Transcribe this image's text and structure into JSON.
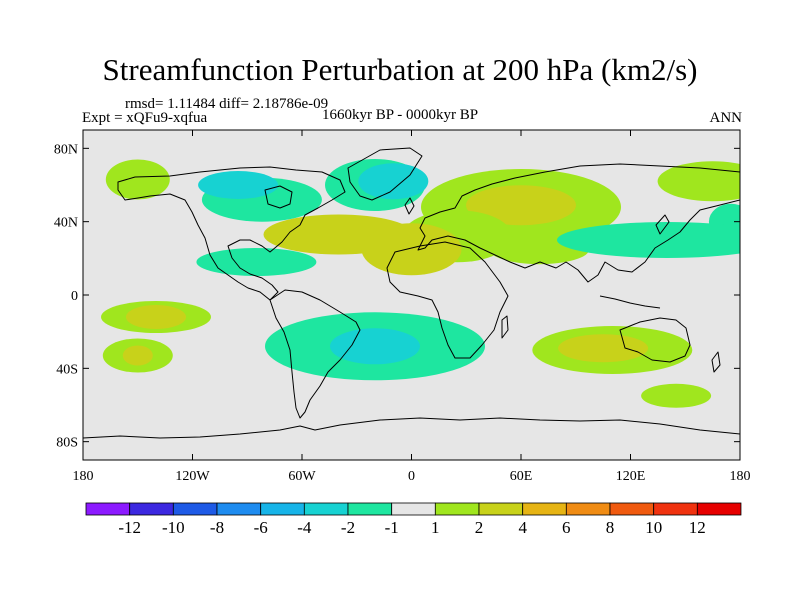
{
  "chart_data": {
    "type": "heatmap",
    "title": "Streamfunction Perturbation at 200 hPa (km2/s)",
    "stats": "rmsd= 1.11484 diff= 2.18786e-09",
    "experiment": "Expt = xQFu9-xqfua",
    "period": "1660kyr BP - 0000kyr BP",
    "season": "ANN",
    "projection": "cylindrical equidistant",
    "xlim": [
      -180,
      180
    ],
    "ylim": [
      -90,
      90
    ],
    "x_ticks": [
      {
        "value": -180,
        "label": "180"
      },
      {
        "value": -120,
        "label": "120W"
      },
      {
        "value": -60,
        "label": "60W"
      },
      {
        "value": 0,
        "label": "0"
      },
      {
        "value": 60,
        "label": "60E"
      },
      {
        "value": 120,
        "label": "120E"
      },
      {
        "value": 180,
        "label": "180"
      }
    ],
    "y_ticks": [
      {
        "value": 80,
        "label": "80N"
      },
      {
        "value": 40,
        "label": "40N"
      },
      {
        "value": 0,
        "label": "0"
      },
      {
        "value": -40,
        "label": "40S"
      },
      {
        "value": -80,
        "label": "80S"
      }
    ],
    "colorbar": {
      "levels": [
        -12,
        -10,
        -8,
        -6,
        -4,
        -2,
        -1,
        1,
        2,
        4,
        6,
        8,
        10,
        12
      ],
      "labels": [
        "-12",
        "-10",
        "-8",
        "-6",
        "-4",
        "-2",
        "-1",
        "1",
        "2",
        "4",
        "6",
        "8",
        "10",
        "12"
      ],
      "colors": [
        "#8c1aff",
        "#3c28e0",
        "#1e5ae6",
        "#1e8cf0",
        "#17b4e8",
        "#17d2d2",
        "#1ee6a0",
        "#e6e6e6",
        "#a0e61e",
        "#c8d21a",
        "#e6b414",
        "#f08c14",
        "#f05a0f",
        "#f0320f",
        "#e60000"
      ]
    },
    "anomaly_features": [
      {
        "lon": -150,
        "lat": 63,
        "value": 1.5
      },
      {
        "lon": 175,
        "lat": 40,
        "value": -1.5
      },
      {
        "lon": -82,
        "lat": 52,
        "value": -1.5
      },
      {
        "lon": -20,
        "lat": 60,
        "value": -1.5
      },
      {
        "lon": -95,
        "lat": 60,
        "value": -2.5
      },
      {
        "lon": -10,
        "lat": 62,
        "value": -2.5
      },
      {
        "lon": 60,
        "lat": 48,
        "value": 1.5
      },
      {
        "lon": 60,
        "lat": 49,
        "value": 3
      },
      {
        "lon": 25,
        "lat": 32,
        "value": 1.5
      },
      {
        "lon": -40,
        "lat": 33,
        "value": 3
      },
      {
        "lon": 0,
        "lat": 25,
        "value": 3
      },
      {
        "lon": -85,
        "lat": 18,
        "value": -1.5
      },
      {
        "lon": 70,
        "lat": 25,
        "value": 1.5
      },
      {
        "lon": 140,
        "lat": 30,
        "value": -1.5
      },
      {
        "lon": 165,
        "lat": 62,
        "value": 1.5
      },
      {
        "lon": -140,
        "lat": -12,
        "value": 1.5
      },
      {
        "lon": -140,
        "lat": -12,
        "value": 3
      },
      {
        "lon": -150,
        "lat": -33,
        "value": 1.5
      },
      {
        "lon": -150,
        "lat": -33,
        "value": 3
      },
      {
        "lon": -20,
        "lat": -28,
        "value": -1.5
      },
      {
        "lon": -20,
        "lat": -28,
        "value": -2.5
      },
      {
        "lon": 110,
        "lat": -30,
        "value": 1.5
      },
      {
        "lon": 105,
        "lat": -29,
        "value": 3
      },
      {
        "lon": 145,
        "lat": -55,
        "value": 1.5
      }
    ]
  }
}
